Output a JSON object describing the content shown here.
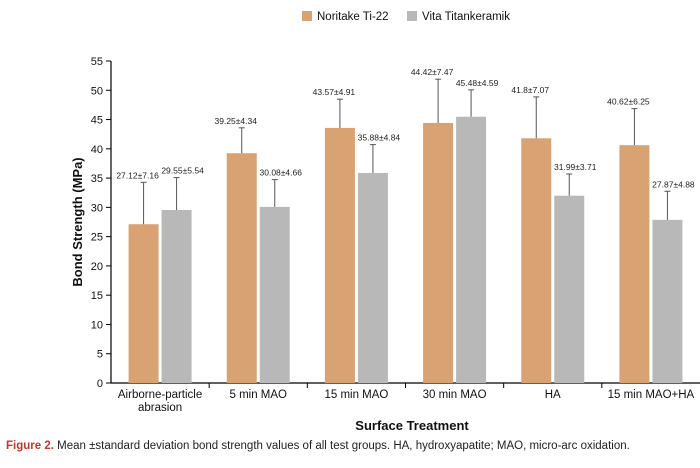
{
  "chart_data": {
    "type": "bar",
    "categories": [
      "Airborne-particle abrasion",
      "5 min MAO",
      "15 min MAO",
      "30 min MAO",
      "HA",
      "15 min MAO+HA"
    ],
    "series": [
      {
        "name": "Noritake Ti-22",
        "color": "#d9a273",
        "values": [
          27.12,
          39.25,
          43.57,
          44.42,
          41.8,
          40.62
        ],
        "errors": [
          7.16,
          4.34,
          4.91,
          7.47,
          7.07,
          6.25
        ],
        "labels": [
          "27.12±7.16",
          "39.25±4.34",
          "43.57±4.91",
          "44.42±7.47",
          "41.8±7.07",
          "40.62±6.25"
        ]
      },
      {
        "name": "Vita Titankeramik",
        "color": "#b8b8b8",
        "values": [
          29.55,
          30.08,
          35.88,
          45.48,
          31.99,
          27.87
        ],
        "errors": [
          5.54,
          4.66,
          4.84,
          4.59,
          3.71,
          4.88
        ],
        "labels": [
          "29.55±5.54",
          "30.08±4.66",
          "35.88±4.84",
          "45.48±4.59",
          "31.99±3.71",
          "27.87±4.88"
        ]
      }
    ],
    "xlabel": "Surface Treatment",
    "ylabel": "Bond Strength (MPa)",
    "ylim": [
      0,
      55
    ],
    "yticks": [
      0,
      5,
      10,
      15,
      20,
      25,
      30,
      35,
      40,
      45,
      50,
      55
    ],
    "grid": false,
    "legend": "top-center"
  },
  "caption": {
    "label": "Figure 2.",
    "text": "Mean ±standard deviation bond strength values of all test groups. HA, hydroxyapatite; MAO, micro-arc oxidation."
  }
}
